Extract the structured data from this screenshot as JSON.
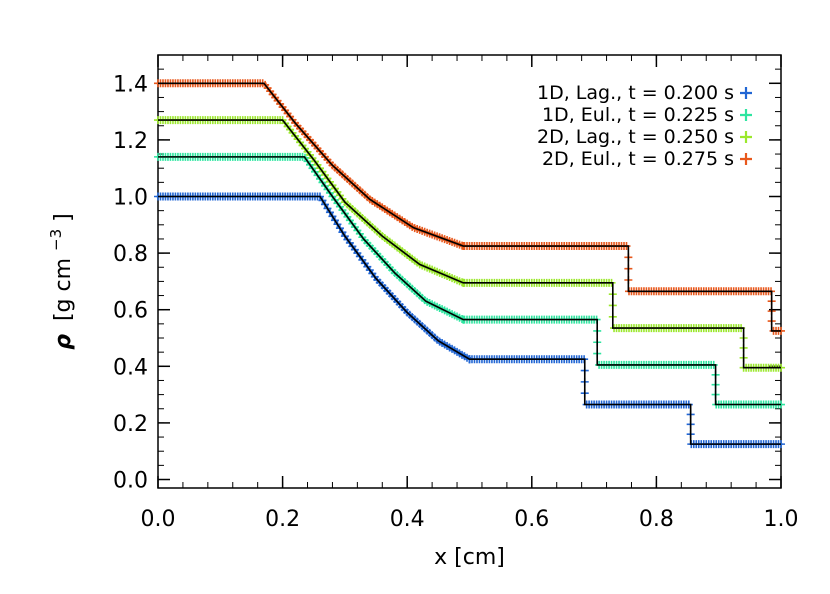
{
  "chart_data": {
    "type": "line",
    "title": "",
    "xlabel": "x [cm]",
    "ylabel_symbol": "ρ",
    "ylabel_unit": "[g cm",
    "ylabel_exp": "−3",
    "ylabel_close": "]",
    "xlim": [
      0.0,
      1.0
    ],
    "ylim": [
      -0.03,
      1.5
    ],
    "xticks": [
      0.0,
      0.2,
      0.4,
      0.6,
      0.8,
      1.0
    ],
    "xtick_labels": [
      "0.0",
      "0.2",
      "0.4",
      "0.6",
      "0.8",
      "1.0"
    ],
    "yticks": [
      0.0,
      0.2,
      0.4,
      0.6,
      0.8,
      1.0,
      1.2,
      1.4
    ],
    "ytick_labels": [
      "0.0",
      "0.2",
      "0.4",
      "0.6",
      "0.8",
      "1.0",
      "1.2",
      "1.4"
    ],
    "legend_position": "top-right",
    "series": [
      {
        "name": "1D, Lag., t = 0.200 s",
        "marker": "+",
        "color": "#2166d4",
        "offset": 0.0,
        "x": [
          0.0,
          0.26,
          0.3,
          0.35,
          0.4,
          0.45,
          0.5,
          0.5,
          0.685,
          0.685,
          0.855,
          0.855,
          1.0
        ],
        "y": [
          1.0,
          1.0,
          0.86,
          0.71,
          0.59,
          0.49,
          0.425,
          0.425,
          0.425,
          0.265,
          0.265,
          0.125,
          0.125
        ]
      },
      {
        "name": "1D, Eul., t = 0.225 s",
        "marker": "+",
        "color": "#2ee5a0",
        "offset": 0.14,
        "x": [
          0.0,
          0.235,
          0.28,
          0.33,
          0.38,
          0.43,
          0.49,
          0.49,
          0.705,
          0.705,
          0.895,
          0.895,
          1.0
        ],
        "y": [
          1.0,
          1.0,
          0.86,
          0.71,
          0.59,
          0.49,
          0.425,
          0.425,
          0.425,
          0.265,
          0.265,
          0.125,
          0.125
        ]
      },
      {
        "name": "2D, Lag., t = 0.250 s",
        "marker": "+",
        "color": "#9be82c",
        "offset": 0.27,
        "x": [
          0.0,
          0.2,
          0.25,
          0.3,
          0.36,
          0.42,
          0.49,
          0.49,
          0.73,
          0.73,
          0.94,
          0.94,
          1.0
        ],
        "y": [
          1.0,
          1.0,
          0.86,
          0.71,
          0.59,
          0.49,
          0.425,
          0.425,
          0.425,
          0.265,
          0.265,
          0.125,
          0.125
        ]
      },
      {
        "name": "2D, Eul., t = 0.275 s",
        "marker": "+",
        "color": "#e8581c",
        "offset": 0.4,
        "x": [
          0.0,
          0.17,
          0.22,
          0.28,
          0.34,
          0.41,
          0.49,
          0.49,
          0.755,
          0.755,
          0.985,
          0.985,
          1.0
        ],
        "y": [
          1.0,
          1.0,
          0.86,
          0.71,
          0.59,
          0.49,
          0.425,
          0.425,
          0.425,
          0.265,
          0.265,
          0.125,
          0.125
        ]
      }
    ]
  }
}
